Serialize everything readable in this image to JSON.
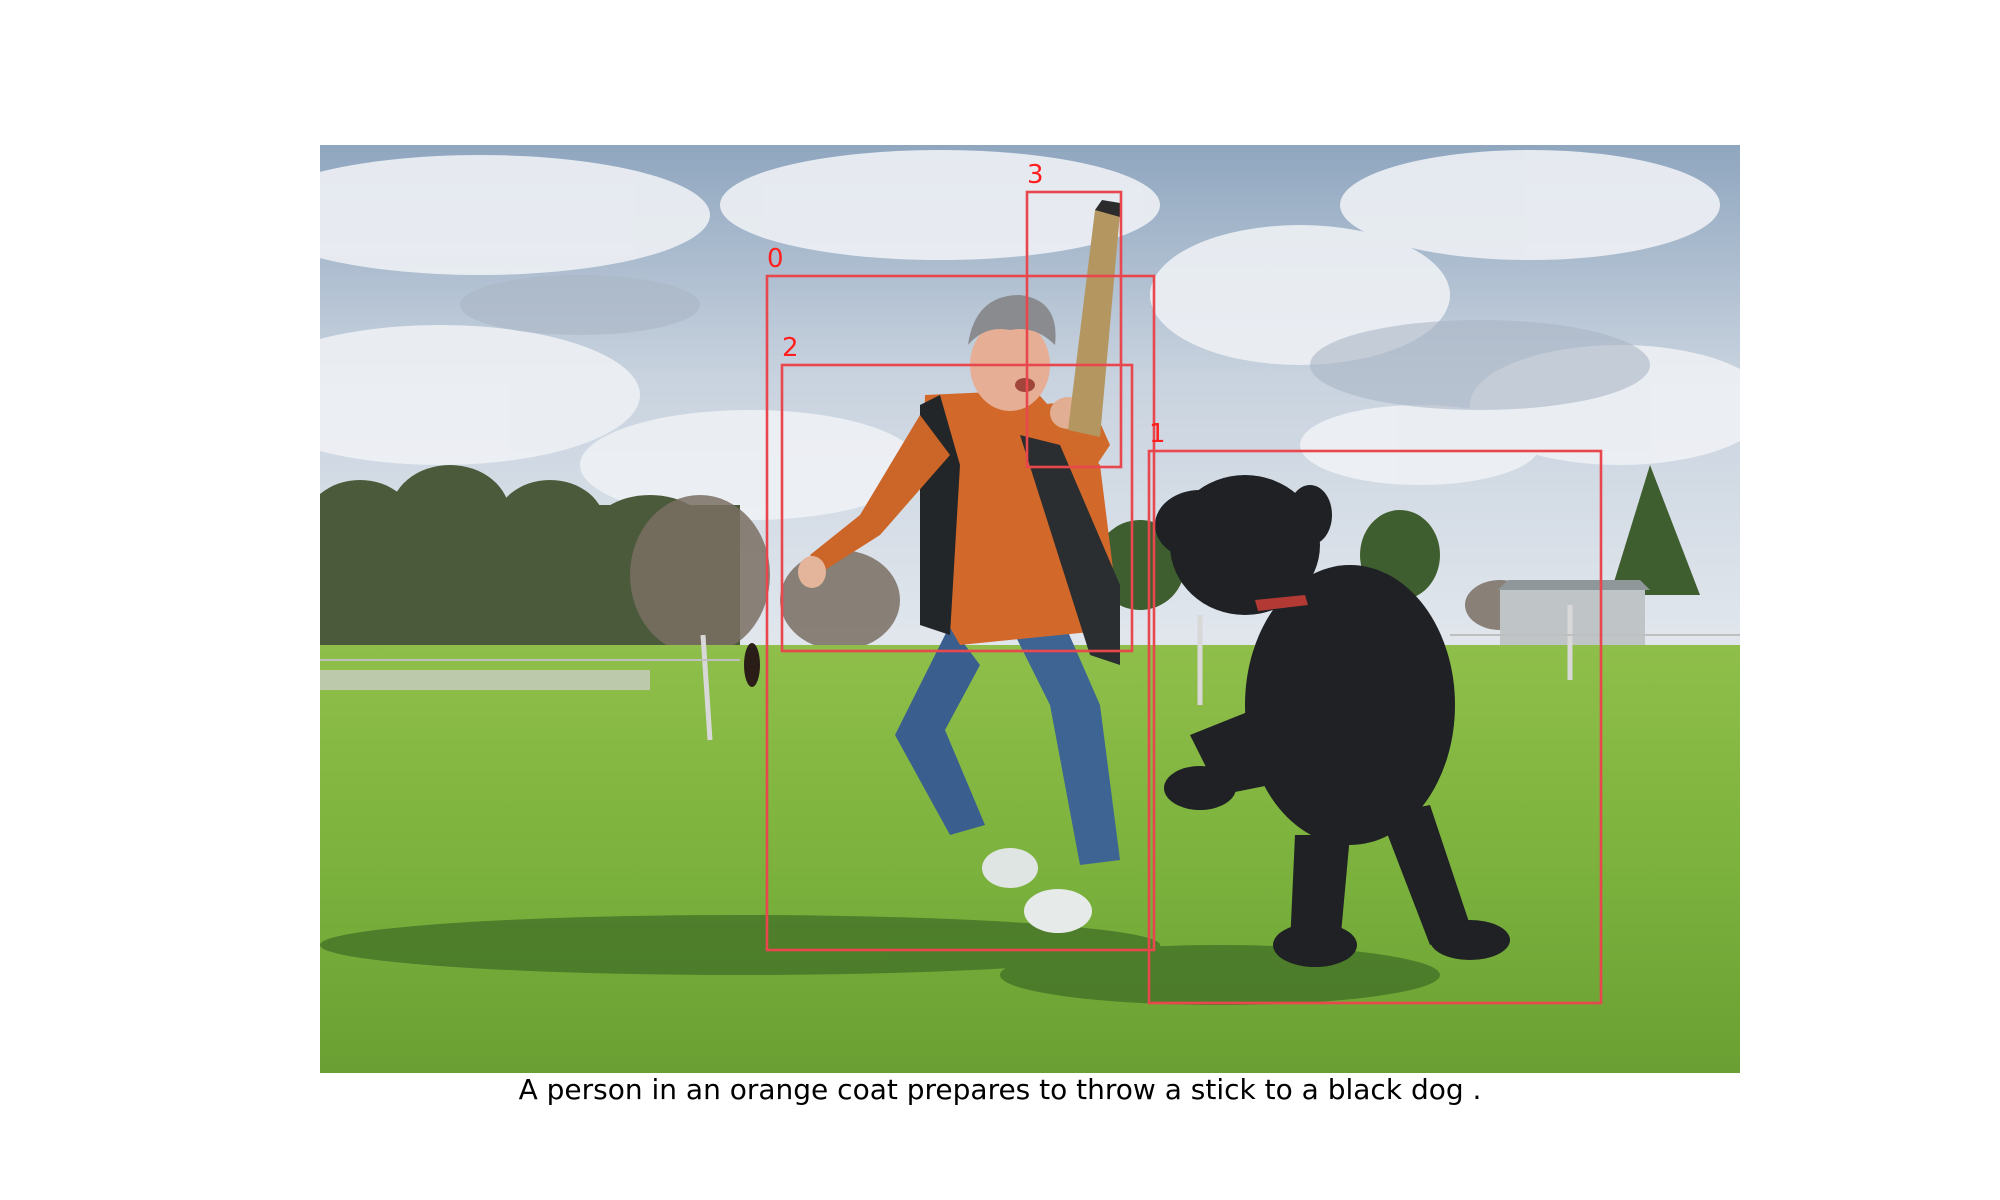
{
  "colors": {
    "box_outline": "#e8474d",
    "label_text": "#ff1f1f",
    "caption_text": "#000000"
  },
  "caption": "A person in an orange coat prepares to throw a stick to a black dog .",
  "boxes": [
    {
      "label": "0",
      "object": "person"
    },
    {
      "label": "1",
      "object": "dog"
    },
    {
      "label": "2",
      "object": "coat"
    },
    {
      "label": "3",
      "object": "stick"
    }
  ]
}
